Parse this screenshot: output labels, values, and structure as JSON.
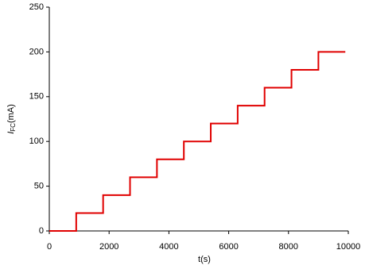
{
  "chart_data": {
    "type": "line",
    "xlabel": "t(s)",
    "ylabel": {
      "symbol": "I",
      "subscript": "FC",
      "unit": "(mA)"
    },
    "x": [
      0,
      900,
      900,
      1800,
      1800,
      2700,
      2700,
      3600,
      3600,
      4500,
      4500,
      5400,
      5400,
      6300,
      6300,
      7200,
      7200,
      8100,
      8100,
      9000,
      9000,
      9900
    ],
    "series": [
      {
        "color": "#e00000",
        "values": [
          0,
          0,
          20,
          20,
          40,
          40,
          60,
          60,
          80,
          80,
          100,
          100,
          120,
          120,
          140,
          140,
          160,
          160,
          180,
          180,
          200,
          200
        ]
      }
    ],
    "xlim": [
      0,
      10000
    ],
    "xticks": [
      0,
      2000,
      4000,
      6000,
      8000,
      10000
    ],
    "ylim": [
      0,
      250
    ],
    "yticks": [
      0,
      50,
      100,
      150,
      200,
      250
    ],
    "grid": false
  }
}
